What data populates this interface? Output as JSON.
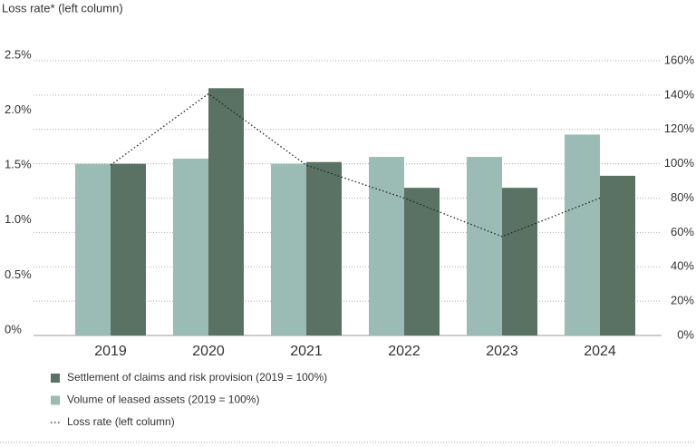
{
  "chart_data": {
    "type": "bar",
    "title": "Loss rate* (left column)",
    "categories": [
      "2019",
      "2020",
      "2021",
      "2022",
      "2023",
      "2024"
    ],
    "series": [
      {
        "name": "Settlement of claims and risk provision (2019 = 100%)",
        "color": "#5a7263",
        "axis": "y2",
        "values": [
          100,
          144,
          101,
          86,
          86,
          93
        ]
      },
      {
        "name": "Volume of leased assets (2019 = 100%)",
        "color": "#9bbcb4",
        "axis": "y2",
        "values": [
          100,
          103,
          100,
          104,
          104,
          117
        ]
      },
      {
        "name": "Loss rate (left column)",
        "type": "line",
        "color": "#222222",
        "values": [
          1.55,
          2.2,
          1.55,
          1.25,
          0.9,
          1.25
        ]
      }
    ],
    "ylim": [
      0,
      2.5
    ],
    "yticks": [
      {
        "value": 0,
        "label": "0%"
      },
      {
        "value": 0.5,
        "label": "0.5%"
      },
      {
        "value": 1.0,
        "label": "1.0%"
      },
      {
        "value": 1.5,
        "label": "1.5%"
      },
      {
        "value": 2.0,
        "label": "2.0%"
      },
      {
        "value": 2.5,
        "label": "2.5%"
      }
    ],
    "y2lim": [
      0,
      160
    ],
    "y2ticks": [
      {
        "value": 0,
        "label": "0%"
      },
      {
        "value": 20,
        "label": "20%"
      },
      {
        "value": 40,
        "label": "40%"
      },
      {
        "value": 60,
        "label": "60%"
      },
      {
        "value": 80,
        "label": "80%"
      },
      {
        "value": 100,
        "label": "100%"
      },
      {
        "value": 120,
        "label": "120%"
      },
      {
        "value": 140,
        "label": "140%"
      },
      {
        "value": 160,
        "label": "160%"
      }
    ],
    "grid": true
  }
}
